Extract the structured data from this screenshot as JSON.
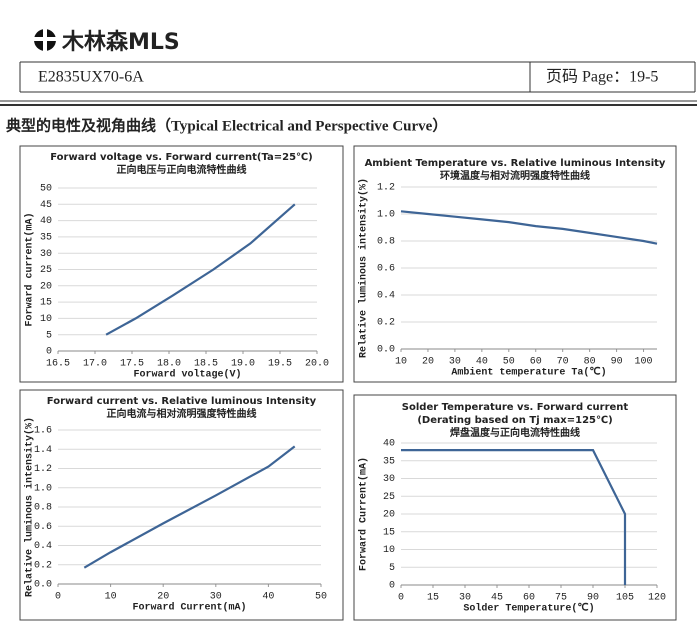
{
  "header": {
    "logo": "木林森MLS",
    "part_number": "E2835UX70-6A",
    "page": "页码 Page：19-5"
  },
  "section_title": "典型的电性及视角曲线（Typical Electrical and Perspective Curve）",
  "chart_data": [
    {
      "type": "line",
      "title_lines": [
        "Forward voltage vs. Forward current(Ta=25℃)",
        "正向电压与正向电流特性曲线"
      ],
      "x_label": "Forward voltage(V)",
      "y_label": "Forward current(mA)",
      "x": [
        17.15,
        17.55,
        18.05,
        18.6,
        19.1,
        19.7
      ],
      "values": [
        5,
        10,
        17,
        25,
        33,
        45
      ],
      "color": "#3e6596",
      "xlim": [
        16.5,
        20.0
      ],
      "xticks": [
        16.5,
        {
          "value": 17,
          "label": "17.0"
        },
        17.5,
        {
          "value": 18,
          "label": "18.0"
        },
        18.5,
        {
          "value": 19,
          "label": "19.0"
        },
        19.5,
        {
          "value": 20,
          "label": "20.0"
        }
      ],
      "ylim": [
        0,
        50
      ],
      "yticks": [
        0,
        5,
        10,
        15,
        20,
        25,
        30,
        35,
        40,
        45,
        50
      ]
    },
    {
      "type": "line",
      "title_lines": [
        "Ambient Temperature vs. Relative luminous Intensity",
        "环境温度与相对流明强度特性曲线"
      ],
      "x_label": "Ambient temperature Ta(℃)",
      "y_label": "Relative luminous intensity(%)",
      "x": [
        10,
        20,
        30,
        40,
        50,
        60,
        70,
        80,
        90,
        100,
        105
      ],
      "values": [
        1.02,
        1.0,
        0.98,
        0.96,
        0.94,
        0.91,
        0.89,
        0.86,
        0.83,
        0.8,
        0.78
      ],
      "color": "#3e6596",
      "xlim": [
        10,
        105
      ],
      "xticks": [
        10,
        20,
        30,
        40,
        50,
        60,
        70,
        80,
        90,
        100
      ],
      "ylim": [
        0,
        1.2
      ],
      "yticks": [
        {
          "value": 0,
          "label": "0.0"
        },
        0.2,
        0.4,
        0.6,
        0.8,
        {
          "value": 1,
          "label": "1.0"
        },
        1.2
      ]
    },
    {
      "type": "line",
      "title_lines": [
        "Forward current vs. Relative luminous Intensity",
        "正向电流与相对流明强度特性曲线"
      ],
      "x_label": "Forward Current(mA)",
      "y_label": "Relative luminous intensity(%)",
      "x": [
        5,
        10,
        20,
        30,
        40,
        45
      ],
      "values": [
        0.17,
        0.33,
        0.63,
        0.92,
        1.22,
        1.43
      ],
      "color": "#3e6596",
      "xlim": [
        0,
        50
      ],
      "xticks": [
        0,
        10,
        20,
        30,
        40,
        50
      ],
      "ylim": [
        0,
        1.6
      ],
      "yticks": [
        {
          "value": 0,
          "label": "0.0"
        },
        0.2,
        0.4,
        0.6,
        0.8,
        {
          "value": 1,
          "label": "1.0"
        },
        1.2,
        1.4,
        1.6
      ]
    },
    {
      "type": "line",
      "title_lines": [
        "Solder Temperature vs. Forward current",
        "(Derating based on Tj max=125℃)",
        "焊盘温度与正向电流特性曲线"
      ],
      "x_label": "Solder Temperature(℃)",
      "y_label": "Forward Current(mA)",
      "x": [
        0,
        90,
        105,
        105
      ],
      "values": [
        38,
        38,
        20,
        0
      ],
      "color": "#3e6596",
      "xlim": [
        0,
        120
      ],
      "xticks": [
        0,
        15,
        30,
        45,
        60,
        75,
        90,
        105,
        120
      ],
      "ylim": [
        0,
        40
      ],
      "yticks": [
        0,
        5,
        10,
        15,
        20,
        25,
        30,
        35,
        40
      ]
    }
  ]
}
